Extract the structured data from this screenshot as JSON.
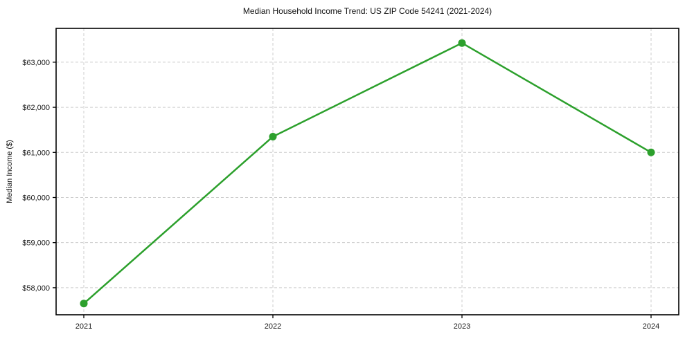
{
  "chart_data": {
    "type": "line",
    "title": "Median Household Income Trend: US ZIP Code 54241 (2021-2024)",
    "xlabel": "",
    "ylabel": "Median Income ($)",
    "categories": [
      "2021",
      "2022",
      "2023",
      "2024"
    ],
    "series": [
      {
        "name": "Median Household Income",
        "values": [
          57650,
          61350,
          63425,
          61000
        ]
      }
    ],
    "values": [
      57650,
      61350,
      63425,
      61000
    ],
    "ylim": [
      57400,
      63750
    ],
    "yticks": [
      58000,
      59000,
      60000,
      61000,
      62000,
      63000
    ],
    "ytick_labels": [
      "$58,000",
      "$59,000",
      "$60,000",
      "$61,000",
      "$62,000",
      "$63,000"
    ],
    "grid": true,
    "grid_style": "dashed",
    "legend": false,
    "legend_position": "none",
    "line_color": "#2ca02c",
    "marker": "circle",
    "grid_color": "#cccccc",
    "axis_color": "#000000",
    "text_color": "#1a1a1a",
    "background": "#ffffff"
  }
}
